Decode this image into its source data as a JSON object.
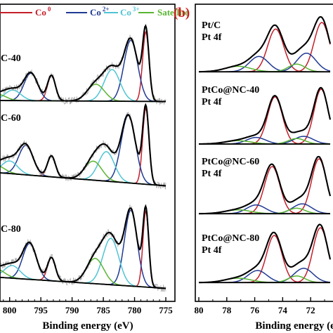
{
  "panel_b_label": "(b)",
  "colors": {
    "envelope": "#000000",
    "noise": "#9a9a9a",
    "co0": "#c41e2a",
    "co2": "#1f3a93",
    "co3": "#4fc4d4",
    "satellite": "#5ab432",
    "pt_red": "#c41e2a",
    "pt_blue": "#1f3a93",
    "pt_green": "#5ab432",
    "panel_b_label": "#d01c1c"
  },
  "chart_data": [
    {
      "type": "line",
      "panel": "a",
      "title": "",
      "xlabel": "Binding energy (eV)",
      "ylabel": "",
      "xlim": [
        803,
        775
      ],
      "x_reversed": true,
      "xticks": [
        800,
        795,
        790,
        785,
        780,
        775
      ],
      "xtick_labels": [
        "800",
        "795",
        "790",
        "785",
        "780",
        "775"
      ],
      "legend": {
        "placement": "top",
        "entries": [
          {
            "label": "Co",
            "sup": "0",
            "series": "co0"
          },
          {
            "label": "Co",
            "sup": "2+",
            "series": "co2"
          },
          {
            "label": "Co",
            "sup": "3+",
            "series": "co3"
          },
          {
            "label": "Satellite",
            "sup": "",
            "series": "satellite"
          }
        ]
      },
      "samples": [
        {
          "label": "C-40",
          "baseline": {
            "start": 0.06,
            "end": 0.05
          },
          "components": [
            {
              "series": "co0",
              "center": 778.2,
              "fwhm": 1.2,
              "height": 0.66
            },
            {
              "series": "co0",
              "center": 793.3,
              "fwhm": 1.5,
              "height": 0.24
            },
            {
              "series": "co2",
              "center": 780.6,
              "fwhm": 2.6,
              "height": 0.58
            },
            {
              "series": "co2",
              "center": 796.6,
              "fwhm": 2.6,
              "height": 0.26
            },
            {
              "series": "co3",
              "center": 783.6,
              "fwhm": 3.0,
              "height": 0.3
            },
            {
              "series": "co3",
              "center": 799.5,
              "fwhm": 3.0,
              "height": 0.1
            },
            {
              "series": "satellite",
              "center": 786.2,
              "fwhm": 3.2,
              "height": 0.16
            },
            {
              "series": "satellite",
              "center": 802.0,
              "fwhm": 3.2,
              "height": 0.06
            }
          ]
        },
        {
          "label": "C-60",
          "baseline": {
            "start": 0.18,
            "end": 0.05
          },
          "components": [
            {
              "series": "co0",
              "center": 778.2,
              "fwhm": 1.2,
              "height": 0.72
            },
            {
              "series": "co0",
              "center": 793.3,
              "fwhm": 1.5,
              "height": 0.2
            },
            {
              "series": "co2",
              "center": 781.0,
              "fwhm": 2.7,
              "height": 0.64
            },
            {
              "series": "co2",
              "center": 797.4,
              "fwhm": 2.7,
              "height": 0.28
            },
            {
              "series": "co3",
              "center": 784.5,
              "fwhm": 3.0,
              "height": 0.28
            },
            {
              "series": "co3",
              "center": 800.0,
              "fwhm": 3.0,
              "height": 0.12
            },
            {
              "series": "satellite",
              "center": 786.6,
              "fwhm": 3.2,
              "height": 0.18
            },
            {
              "series": "satellite",
              "center": 802.2,
              "fwhm": 3.2,
              "height": 0.07
            }
          ]
        },
        {
          "label": "C-80",
          "baseline": {
            "start": 0.16,
            "end": 0.05
          },
          "components": [
            {
              "series": "co0",
              "center": 778.2,
              "fwhm": 1.1,
              "height": 0.72
            },
            {
              "series": "co0",
              "center": 793.3,
              "fwhm": 1.5,
              "height": 0.22
            },
            {
              "series": "co2",
              "center": 780.6,
              "fwhm": 2.4,
              "height": 0.72
            },
            {
              "series": "co2",
              "center": 796.8,
              "fwhm": 2.6,
              "height": 0.34
            },
            {
              "series": "co3",
              "center": 783.8,
              "fwhm": 3.0,
              "height": 0.44
            },
            {
              "series": "co3",
              "center": 799.6,
              "fwhm": 3.0,
              "height": 0.12
            },
            {
              "series": "satellite",
              "center": 786.3,
              "fwhm": 3.2,
              "height": 0.24
            },
            {
              "series": "satellite",
              "center": 802.2,
              "fwhm": 3.2,
              "height": 0.08
            }
          ]
        }
      ]
    },
    {
      "type": "line",
      "panel": "b",
      "title": "",
      "xlabel": "Binding energy (eV)",
      "ylabel": "",
      "xlim": [
        80,
        70.6
      ],
      "x_reversed": true,
      "xticks": [
        80,
        78,
        76,
        74,
        72
      ],
      "xtick_labels": [
        "80",
        "78",
        "76",
        "74",
        "72"
      ],
      "samples": [
        {
          "label": [
            "Pt/C",
            "Pt 4f"
          ],
          "baseline": {
            "start": 0.1,
            "end": 0.1
          },
          "components": [
            {
              "series": "pt_red",
              "center": 74.5,
              "fwhm": 1.35,
              "height": 0.78
            },
            {
              "series": "pt_red",
              "center": 71.2,
              "fwhm": 1.3,
              "height": 0.9
            },
            {
              "series": "pt_blue",
              "center": 75.7,
              "fwhm": 1.6,
              "height": 0.28
            },
            {
              "series": "pt_blue",
              "center": 72.3,
              "fwhm": 1.6,
              "height": 0.34
            },
            {
              "series": "pt_green",
              "center": 77.2,
              "fwhm": 2.2,
              "height": 0.1
            },
            {
              "series": "pt_green",
              "center": 73.0,
              "fwhm": 1.4,
              "height": 0.14
            }
          ]
        },
        {
          "label": [
            "PtCo@NC-40",
            "Pt 4f"
          ],
          "baseline": {
            "start": 0.09,
            "end": 0.09
          },
          "components": [
            {
              "series": "pt_red",
              "center": 74.55,
              "fwhm": 1.25,
              "height": 0.86
            },
            {
              "series": "pt_red",
              "center": 71.25,
              "fwhm": 1.2,
              "height": 1.0
            },
            {
              "series": "pt_blue",
              "center": 75.9,
              "fwhm": 1.6,
              "height": 0.12
            },
            {
              "series": "pt_blue",
              "center": 72.5,
              "fwhm": 1.6,
              "height": 0.14
            },
            {
              "series": "pt_green",
              "center": 77.2,
              "fwhm": 2.2,
              "height": 0.06
            },
            {
              "series": "pt_green",
              "center": 73.0,
              "fwhm": 1.4,
              "height": 0.1
            }
          ]
        },
        {
          "label": [
            "PtCo@NC-60",
            "Pt 4f"
          ],
          "baseline": {
            "start": 0.1,
            "end": 0.1
          },
          "components": [
            {
              "series": "pt_red",
              "center": 74.75,
              "fwhm": 1.3,
              "height": 0.86
            },
            {
              "series": "pt_red",
              "center": 71.4,
              "fwhm": 1.25,
              "height": 1.0
            },
            {
              "series": "pt_blue",
              "center": 75.9,
              "fwhm": 1.6,
              "height": 0.16
            },
            {
              "series": "pt_blue",
              "center": 72.6,
              "fwhm": 1.6,
              "height": 0.18
            },
            {
              "series": "pt_green",
              "center": 77.2,
              "fwhm": 2.2,
              "height": 0.07
            },
            {
              "series": "pt_green",
              "center": 73.0,
              "fwhm": 1.4,
              "height": 0.1
            }
          ]
        },
        {
          "label": [
            "PtCo@NC-80",
            "Pt 4f"
          ],
          "baseline": {
            "start": 0.1,
            "end": 0.1
          },
          "components": [
            {
              "series": "pt_red",
              "center": 74.6,
              "fwhm": 1.3,
              "height": 0.86
            },
            {
              "series": "pt_red",
              "center": 71.3,
              "fwhm": 1.25,
              "height": 1.0
            },
            {
              "series": "pt_blue",
              "center": 75.8,
              "fwhm": 1.6,
              "height": 0.22
            },
            {
              "series": "pt_blue",
              "center": 72.5,
              "fwhm": 1.6,
              "height": 0.26
            },
            {
              "series": "pt_green",
              "center": 77.2,
              "fwhm": 2.2,
              "height": 0.08
            },
            {
              "series": "pt_green",
              "center": 73.0,
              "fwhm": 1.4,
              "height": 0.12
            }
          ]
        }
      ]
    }
  ]
}
